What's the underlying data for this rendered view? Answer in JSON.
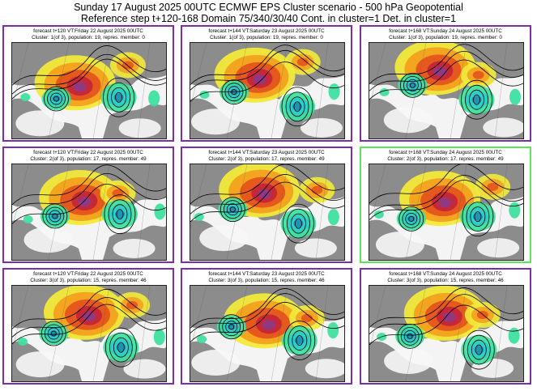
{
  "header": {
    "line1": "Sunday 17 August 2025 00UTC ECMWF EPS Cluster scenario - 500 hPa Geopotential",
    "line2": "Reference step t+120-168 Domain 75/340/30/40 Cont. in cluster=1 Det. in cluster=1"
  },
  "colors": {
    "panel_border": "#7a2fa8",
    "selected_border": "#5fe35a",
    "land": "#8c8c8c",
    "anomaly_scale": [
      "#f2ea3a",
      "#f4a11f",
      "#e5541c",
      "#c4263a",
      "#8b3a8c",
      "#3fe0a0",
      "#2ccfc9",
      "#1d8fb2"
    ]
  },
  "panels": [
    {
      "line1": "forecast t+120 VT:Friday 22 August 2025 00UTC",
      "line2": "Cluster: 1(of 3), population: 19, repres. member: 0",
      "selected": false
    },
    {
      "line1": "forecast t+144 VT:Saturday 23 August 2025 00UTC",
      "line2": "Cluster: 1(of 3), population: 19, repres. member: 0",
      "selected": false
    },
    {
      "line1": "forecast t+168 VT:Sunday 24 August 2025 00UTC",
      "line2": "Cluster: 1(of 3), population: 19, repres. member: 0",
      "selected": false
    },
    {
      "line1": "forecast t+120 VT:Friday 22 August 2025 00UTC",
      "line2": "Cluster: 2(of 3), population: 17, repres. member: 49",
      "selected": false
    },
    {
      "line1": "forecast t+144 VT:Saturday 23 August 2025 00UTC",
      "line2": "Cluster: 2(of 3), population: 17, repres. member: 49",
      "selected": false
    },
    {
      "line1": "forecast t+168 VT:Sunday 24 August 2025 00UTC",
      "line2": "Cluster: 2(of 3), population: 17, repres. member: 49",
      "selected": true
    },
    {
      "line1": "forecast t+120 VT:Friday 22 August 2025 00UTC",
      "line2": "Cluster: 3(of 3), population: 15, repres. member: 46",
      "selected": false
    },
    {
      "line1": "forecast t+144 VT:Saturday 23 August 2025 00UTC",
      "line2": "Cluster: 3(of 3), population: 15, repres. member: 46",
      "selected": false
    },
    {
      "line1": "forecast t+168 VT:Sunday 24 August 2025 00UTC",
      "line2": "Cluster: 3(of 3), population: 15, repres. member: 46",
      "selected": false
    }
  ]
}
